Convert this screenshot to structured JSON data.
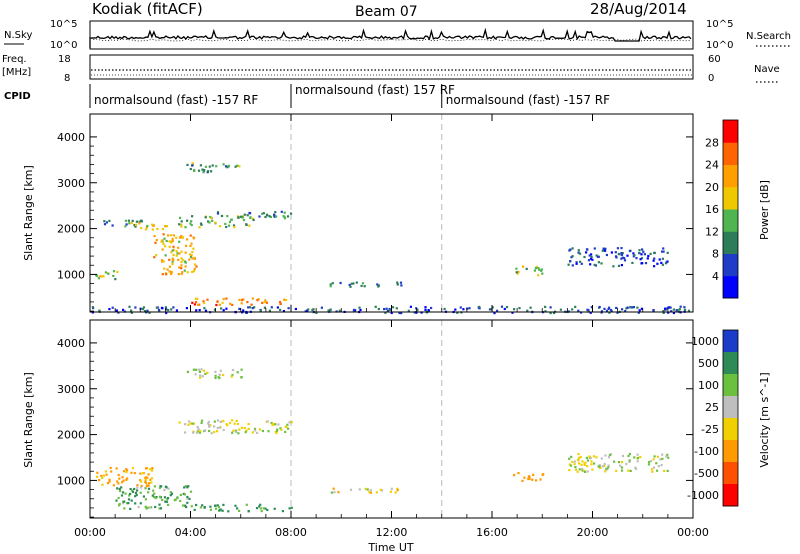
{
  "header": {
    "station": "Kodiak (fitACF)",
    "beam": "Beam 07",
    "date": "28/Aug/2014"
  },
  "noise_panel": {
    "left_label": "N.Sky",
    "left_ticks": [
      "10^5",
      "10^0"
    ],
    "right_label": "N.Search",
    "right_ticks": [
      "10^5",
      "10^0"
    ]
  },
  "freq_panel": {
    "left_label_1": "Freq.",
    "left_label_2": "[MHz]",
    "left_ticks": [
      "18",
      "8"
    ],
    "right_label": "Nave",
    "right_ticks": [
      "60",
      "0"
    ]
  },
  "cpid": {
    "label": "CPID",
    "segments": [
      {
        "text": "normalsound (fast) -157 RF",
        "start_hour": 0
      },
      {
        "text": "normalsound (fast) 157 RF",
        "start_hour": 8
      },
      {
        "text": "normalsound (fast) -157 RF",
        "start_hour": 14
      }
    ]
  },
  "x_axis": {
    "label": "Time UT",
    "ticks": [
      "00:00",
      "04:00",
      "08:00",
      "12:00",
      "16:00",
      "20:00",
      "00:00"
    ]
  },
  "power_panel": {
    "ylabel": "Slant Range [km]",
    "yticks": [
      "4000",
      "3000",
      "2000",
      "1000"
    ],
    "colorbar_label": "Power [dB]",
    "colorbar_ticks": [
      "28",
      "24",
      "20",
      "16",
      "12",
      "8",
      "4"
    ]
  },
  "velocity_panel": {
    "ylabel": "Slant Range [km]",
    "yticks": [
      "4000",
      "3000",
      "2000",
      "1000"
    ],
    "colorbar_label": "Velocity [m s^-1]",
    "colorbar_ticks": [
      "1000",
      "500",
      "100",
      "25",
      "-25",
      "-100",
      "-500",
      "-1000"
    ]
  },
  "chart_data": [
    {
      "type": "heatmap",
      "title": "Power",
      "xlabel": "Time UT",
      "ylabel": "Slant Range [km]",
      "xlim_hours": [
        0,
        24
      ],
      "ylim_km": [
        180,
        4500
      ],
      "colorbar": {
        "label": "Power [dB]",
        "range": [
          0,
          32
        ],
        "colors": [
          "#0000ff",
          "#1e3cc8",
          "#2e7d5a",
          "#50b450",
          "#f0c800",
          "#ffa000",
          "#ff6400",
          "#ff0000"
        ]
      },
      "blobs": [
        {
          "t": [
            0.2,
            1.2
          ],
          "r": [
            900,
            1100
          ],
          "power": 16
        },
        {
          "t": [
            0.5,
            2.2
          ],
          "r": [
            2050,
            2200
          ],
          "power": 10
        },
        {
          "t": [
            1.5,
            3.2
          ],
          "r": [
            2000,
            2150
          ],
          "power": 20
        },
        {
          "t": [
            2.5,
            4.2
          ],
          "r": [
            1000,
            1900
          ],
          "power": 20
        },
        {
          "t": [
            4.0,
            7.9
          ],
          "r": [
            350,
            500
          ],
          "power": 24
        },
        {
          "t": [
            3.5,
            6.5
          ],
          "r": [
            2050,
            2300
          ],
          "power": 14
        },
        {
          "t": [
            5.0,
            8.0
          ],
          "r": [
            2250,
            2400
          ],
          "power": 10
        },
        {
          "t": [
            3.8,
            6.0
          ],
          "r": [
            3250,
            3450
          ],
          "power": 12
        },
        {
          "t": [
            9.5,
            12.5
          ],
          "r": [
            750,
            850
          ],
          "power": 8
        },
        {
          "t": [
            16.8,
            18.0
          ],
          "r": [
            1000,
            1200
          ],
          "power": 16
        },
        {
          "t": [
            19.0,
            23.0
          ],
          "r": [
            1200,
            1600
          ],
          "power": 6
        },
        {
          "t": [
            0,
            24
          ],
          "r": [
            180,
            320
          ],
          "power": 6
        }
      ]
    },
    {
      "type": "heatmap",
      "title": "Velocity",
      "xlabel": "Time UT",
      "ylabel": "Slant Range [km]",
      "xlim_hours": [
        0,
        24
      ],
      "ylim_km": [
        180,
        4500
      ],
      "colorbar": {
        "label": "Velocity [m s^-1]",
        "range": [
          -1000,
          1000
        ],
        "levels": [
          "1000",
          "500",
          "100",
          "25",
          "-25",
          "-100",
          "-500",
          "-1000"
        ]
      },
      "blobs": [
        {
          "t": [
            0.2,
            2.5
          ],
          "r": [
            900,
            1300
          ],
          "velocity": -150
        },
        {
          "t": [
            1.0,
            4.0
          ],
          "r": [
            400,
            900
          ],
          "velocity": 100
        },
        {
          "t": [
            3.5,
            8.0
          ],
          "r": [
            2050,
            2350
          ],
          "velocity": 0
        },
        {
          "t": [
            4.0,
            8.0
          ],
          "r": [
            350,
            500
          ],
          "velocity": 150
        },
        {
          "t": [
            3.8,
            6.0
          ],
          "r": [
            3250,
            3450
          ],
          "velocity": 0
        },
        {
          "t": [
            9.5,
            12.5
          ],
          "r": [
            750,
            850
          ],
          "velocity": -50
        },
        {
          "t": [
            16.8,
            18.0
          ],
          "r": [
            1000,
            1200
          ],
          "velocity": -300
        },
        {
          "t": [
            19.0,
            23.0
          ],
          "r": [
            1200,
            1600
          ],
          "velocity": 0
        }
      ]
    }
  ],
  "colors": {
    "axis": "#000000",
    "divider": "#bbbbbb",
    "power_scale": [
      "#0000ff",
      "#1e3cc8",
      "#2e7d5a",
      "#50b450",
      "#f0c800",
      "#ffa000",
      "#ff6400",
      "#ff0000"
    ],
    "velocity_scale": [
      "#1a3cc8",
      "#2e8b57",
      "#6cc040",
      "#bebebe",
      "#f0d000",
      "#ff9a00",
      "#ff5000",
      "#ff0000"
    ]
  }
}
